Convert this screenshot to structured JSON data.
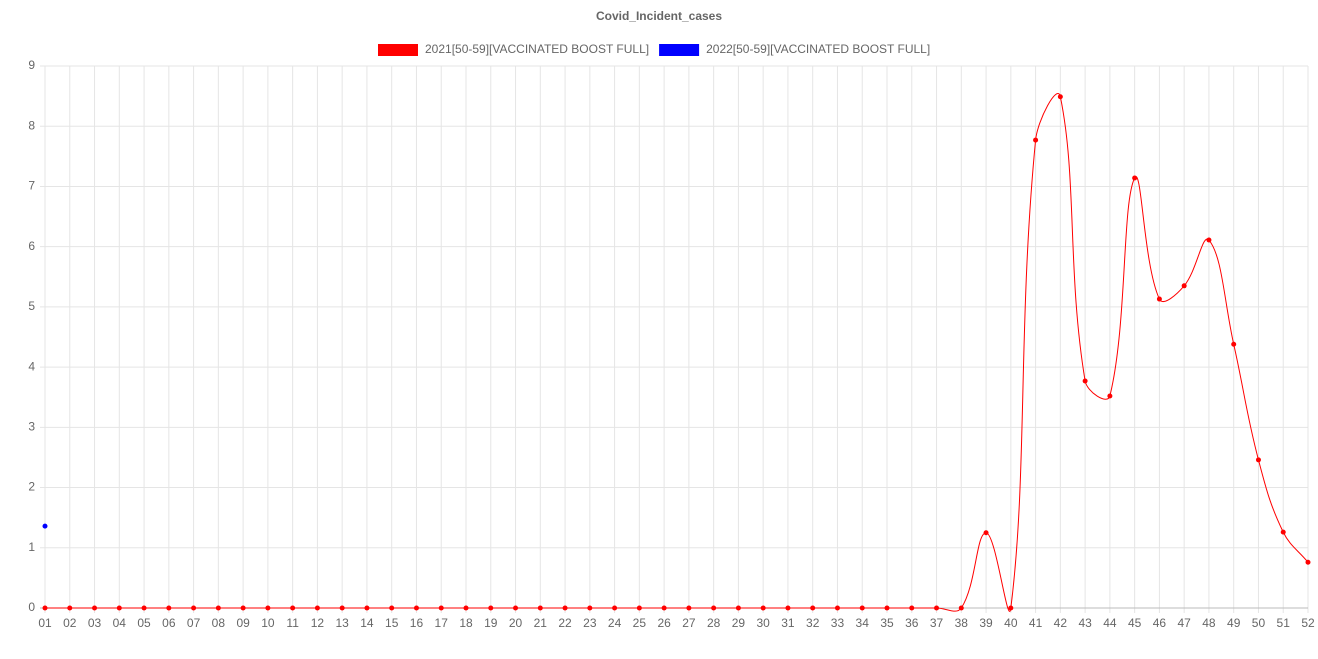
{
  "chart_data": {
    "type": "line",
    "title": "Covid_Incident_cases",
    "categories": [
      "01",
      "02",
      "03",
      "04",
      "05",
      "06",
      "07",
      "08",
      "09",
      "10",
      "11",
      "12",
      "13",
      "14",
      "15",
      "16",
      "17",
      "18",
      "19",
      "20",
      "21",
      "22",
      "23",
      "24",
      "25",
      "26",
      "27",
      "28",
      "29",
      "30",
      "31",
      "32",
      "33",
      "34",
      "35",
      "36",
      "37",
      "38",
      "39",
      "40",
      "41",
      "42",
      "43",
      "44",
      "45",
      "46",
      "47",
      "48",
      "49",
      "50",
      "51",
      "52"
    ],
    "series": [
      {
        "name": "2021[50-59][VACCINATED BOOST FULL]",
        "color": "#ff0000",
        "values": [
          0,
          0,
          0,
          0,
          0,
          0,
          0,
          0,
          0,
          0,
          0,
          0,
          0,
          0,
          0,
          0,
          0,
          0,
          0,
          0,
          0,
          0,
          0,
          0,
          0,
          0,
          0,
          0,
          0,
          0,
          0,
          0,
          0,
          0,
          0,
          0,
          0,
          0,
          1.25,
          0,
          7.77,
          8.49,
          3.77,
          3.52,
          7.14,
          5.13,
          5.35,
          6.11,
          4.38,
          2.46,
          1.26,
          0.76
        ]
      },
      {
        "name": "2022[50-59][VACCINATED BOOST FULL]",
        "color": "#0000ff",
        "values": [
          1.36,
          null,
          null,
          null,
          null,
          null,
          null,
          null,
          null,
          null,
          null,
          null,
          null,
          null,
          null,
          null,
          null,
          null,
          null,
          null,
          null,
          null,
          null,
          null,
          null,
          null,
          null,
          null,
          null,
          null,
          null,
          null,
          null,
          null,
          null,
          null,
          null,
          null,
          null,
          null,
          null,
          null,
          null,
          null,
          null,
          null,
          null,
          null,
          null,
          null,
          null,
          null
        ]
      }
    ],
    "ylim": [
      0,
      9
    ],
    "yticks": [
      0,
      1,
      2,
      3,
      4,
      5,
      6,
      7,
      8,
      9
    ],
    "grid": true
  }
}
